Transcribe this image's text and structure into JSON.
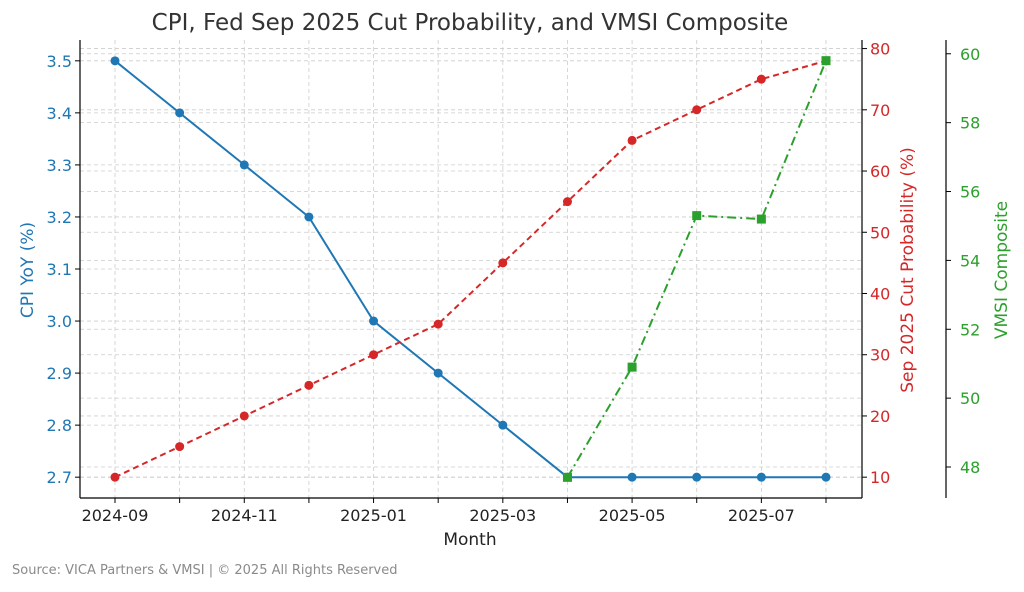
{
  "chart_data": {
    "type": "line",
    "title": "CPI, Fed Sep 2025 Cut Probability, and VMSI Composite",
    "xlabel": "Month",
    "x": [
      "2024-09",
      "2024-10",
      "2024-11",
      "2024-12",
      "2025-01",
      "2025-02",
      "2025-03",
      "2025-04",
      "2025-05",
      "2025-06",
      "2025-07",
      "2025-08"
    ],
    "x_tick_labels": [
      "2024-09",
      "2024-11",
      "2025-01",
      "2025-03",
      "2025-05",
      "2025-07"
    ],
    "grid": true,
    "series": [
      {
        "name": "CPI YoY (%)",
        "axis": "left",
        "color": "#1f77b4",
        "line_style": "solid",
        "marker": "circle",
        "values": [
          3.5,
          3.4,
          3.3,
          3.2,
          3.0,
          2.9,
          2.8,
          2.7,
          2.7,
          2.7,
          2.7,
          2.7
        ]
      },
      {
        "name": "Sep 2025 Cut Probability (%)",
        "axis": "right",
        "color": "#d62728",
        "line_style": "dashed",
        "marker": "circle",
        "values": [
          10,
          15,
          20,
          25,
          30,
          35,
          45,
          55,
          65,
          70,
          75,
          78
        ]
      },
      {
        "name": "VMSI Composite",
        "axis": "right2",
        "color": "#2ca02c",
        "line_style": "dashdot",
        "marker": "square",
        "values": [
          null,
          null,
          null,
          null,
          null,
          null,
          null,
          47.7,
          50.9,
          55.3,
          55.2,
          59.8
        ]
      }
    ],
    "axes": {
      "left": {
        "label": "CPI YoY (%)",
        "ylim": [
          2.66,
          3.54
        ],
        "ticks": [
          2.7,
          2.8,
          2.9,
          3.0,
          3.1,
          3.2,
          3.3,
          3.4,
          3.5
        ],
        "tick_labels": [
          "2.7",
          "2.8",
          "2.9",
          "3.0",
          "3.1",
          "3.2",
          "3.3",
          "3.4",
          "3.5"
        ]
      },
      "right": {
        "label": "Sep 2025 Cut Probability (%)",
        "ylim": [
          6.6,
          81.4
        ],
        "ticks": [
          10,
          20,
          30,
          40,
          50,
          60,
          70,
          80
        ],
        "tick_labels": [
          "10",
          "20",
          "30",
          "40",
          "50",
          "60",
          "70",
          "80"
        ]
      },
      "right2": {
        "label": "VMSI Composite",
        "ylim": [
          47.1,
          60.4
        ],
        "ticks": [
          48,
          50,
          52,
          54,
          56,
          58,
          60
        ],
        "tick_labels": [
          "48",
          "50",
          "52",
          "54",
          "56",
          "58",
          "60"
        ]
      }
    }
  },
  "footer": "Source: VICA Partners & VMSI  |  © 2025 All Rights Reserved"
}
